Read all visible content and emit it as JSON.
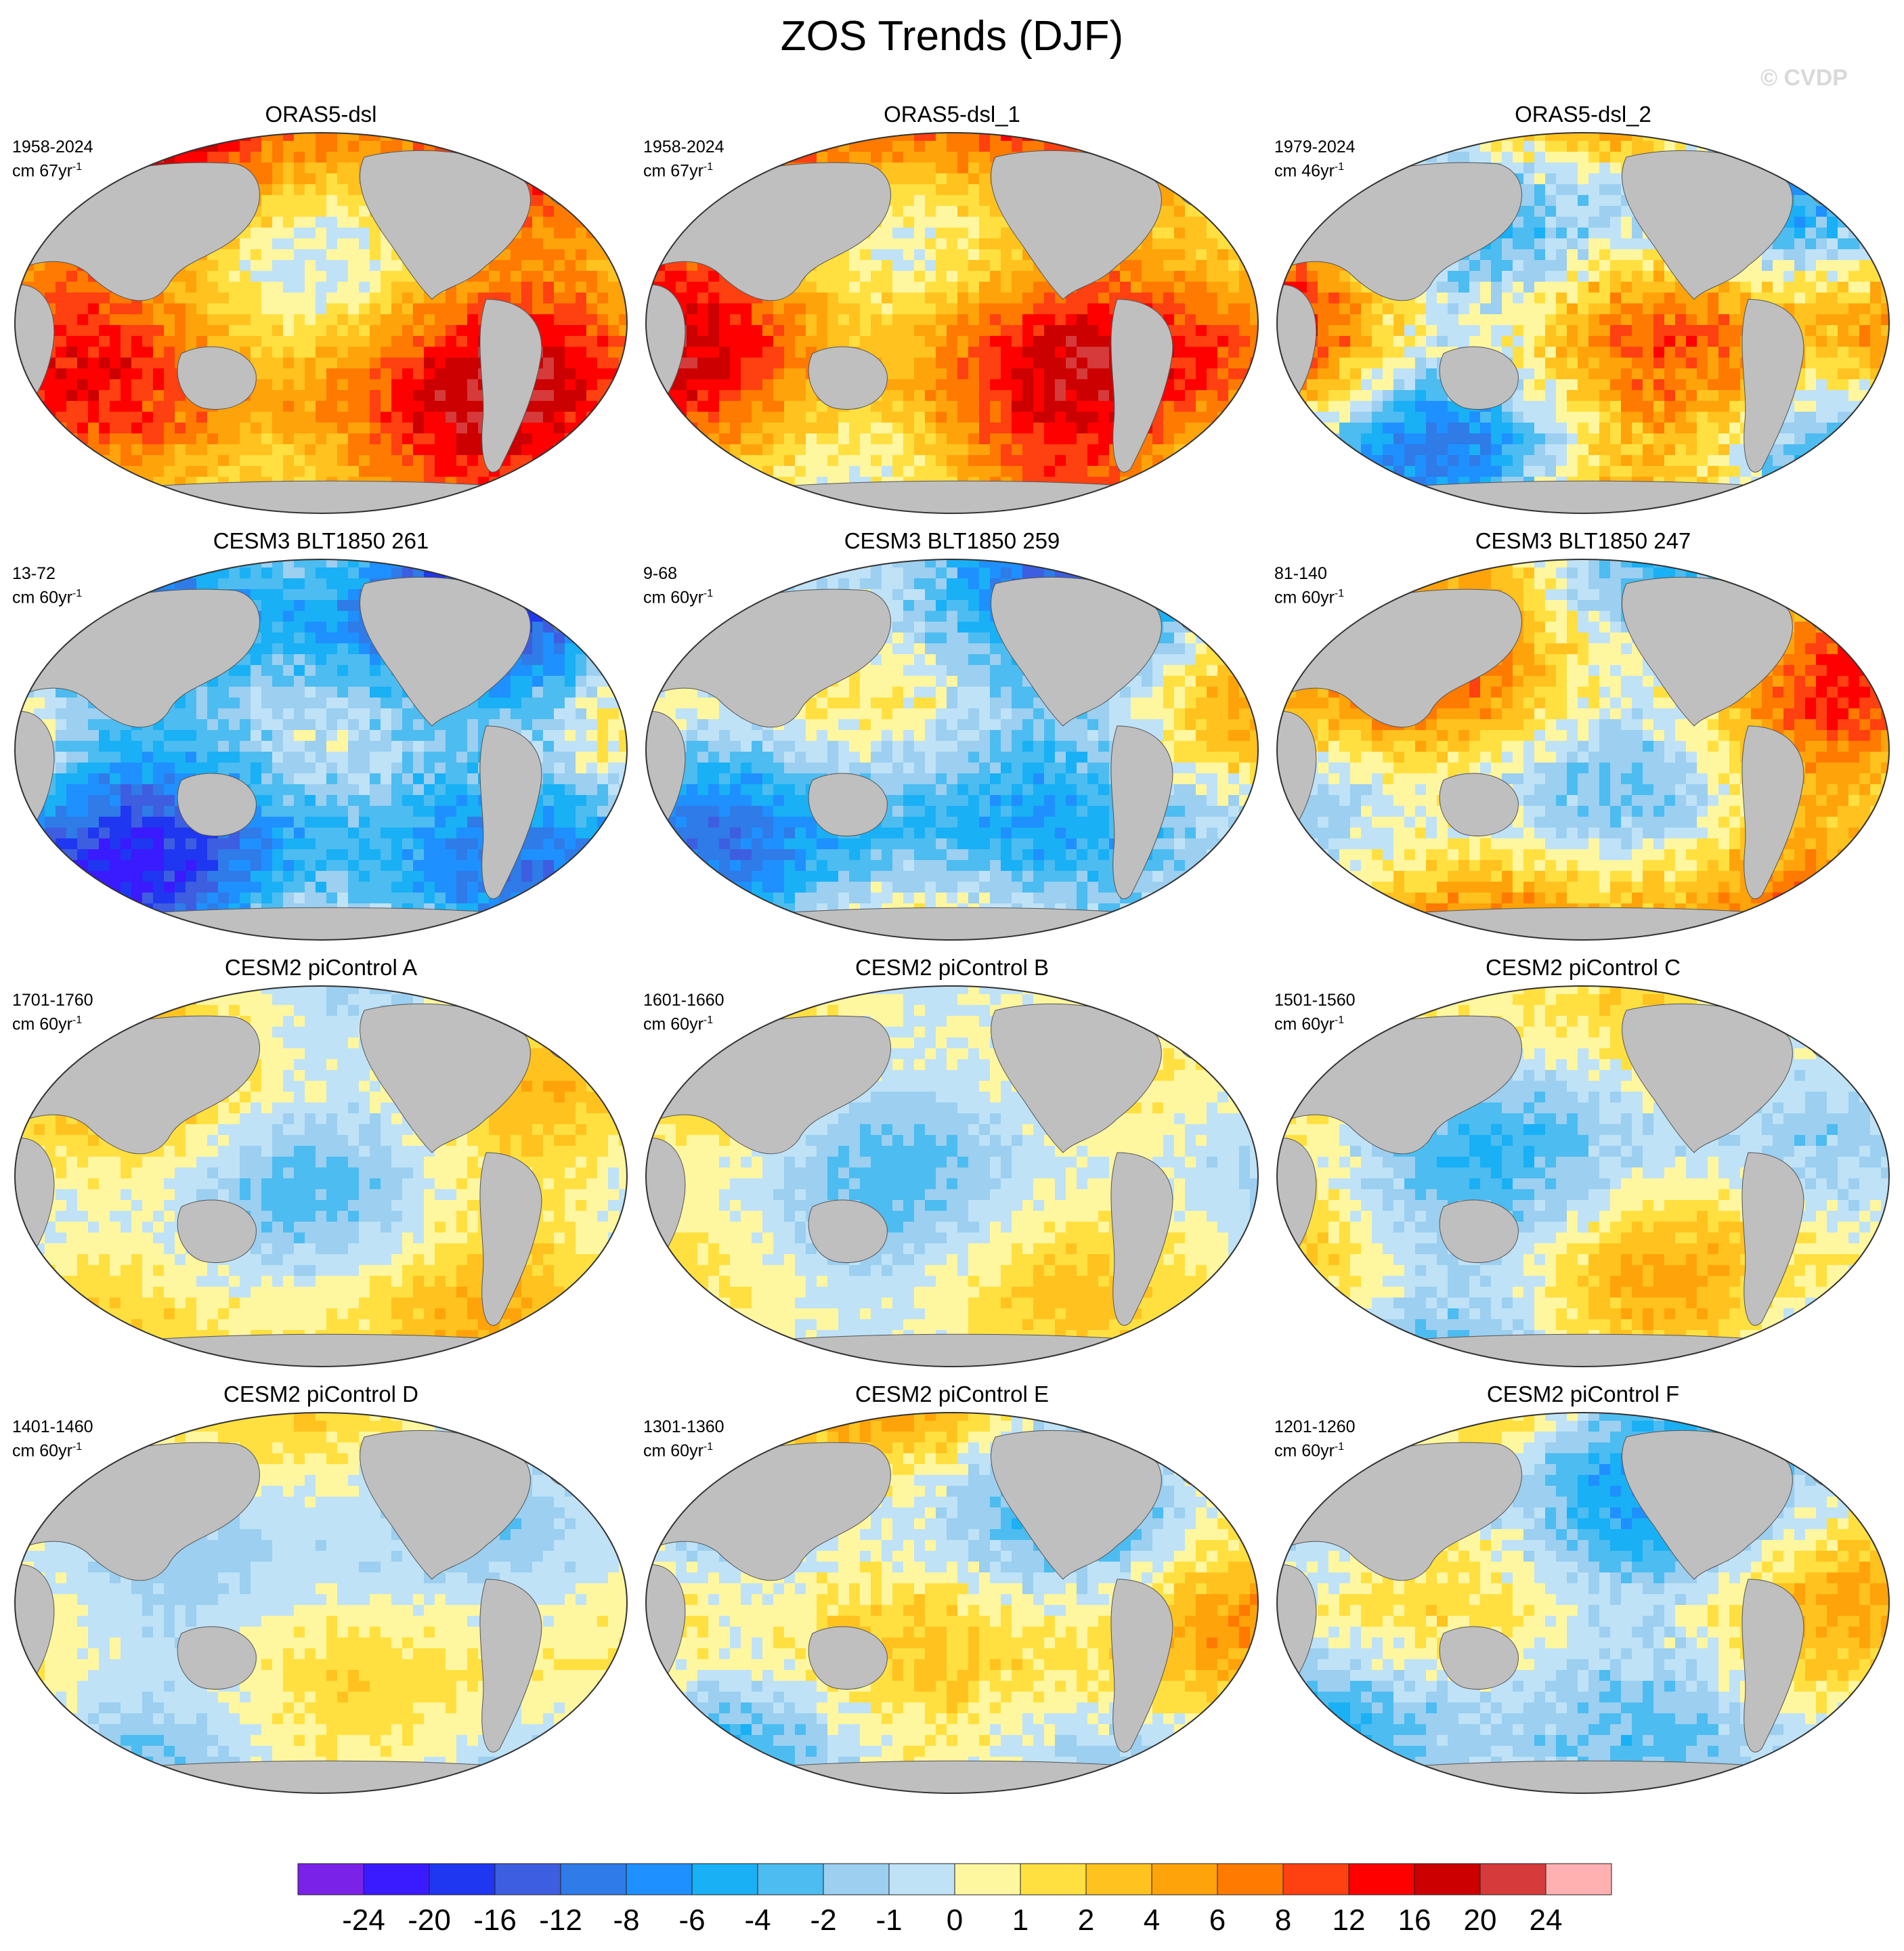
{
  "figure": {
    "title": "ZOS Trends (DJF)",
    "watermark": "© CVDP"
  },
  "chart_data": {
    "type": "heatmap",
    "title": "ZOS Trends (DJF)",
    "projection": "Robinson (global, Pacific-centered)",
    "land_color": "#bfbfbf",
    "panels": [
      {
        "title": "ORAS5-dsl",
        "years": "1958-2024",
        "units": "cm 67yr",
        "units_sup": "-1"
      },
      {
        "title": "ORAS5-dsl_1",
        "years": "1958-2024",
        "units": "cm 67yr",
        "units_sup": "-1"
      },
      {
        "title": "ORAS5-dsl_2",
        "years": "1979-2024",
        "units": "cm 46yr",
        "units_sup": "-1"
      },
      {
        "title": "CESM3 BLT1850 261",
        "years": "13-72",
        "units": "cm 60yr",
        "units_sup": "-1"
      },
      {
        "title": "CESM3 BLT1850 259",
        "years": "9-68",
        "units": "cm 60yr",
        "units_sup": "-1"
      },
      {
        "title": "CESM3 BLT1850 247",
        "years": "81-140",
        "units": "cm 60yr",
        "units_sup": "-1"
      },
      {
        "title": "CESM2 piControl A",
        "years": "1701-1760",
        "units": "cm 60yr",
        "units_sup": "-1"
      },
      {
        "title": "CESM2 piControl B",
        "years": "1601-1660",
        "units": "cm 60yr",
        "units_sup": "-1"
      },
      {
        "title": "CESM2 piControl C",
        "years": "1501-1560",
        "units": "cm 60yr",
        "units_sup": "-1"
      },
      {
        "title": "CESM2 piControl D",
        "years": "1401-1460",
        "units": "cm 60yr",
        "units_sup": "-1"
      },
      {
        "title": "CESM2 piControl E",
        "years": "1301-1360",
        "units": "cm 60yr",
        "units_sup": "-1"
      },
      {
        "title": "CESM2 piControl F",
        "years": "1201-1260",
        "units": "cm 60yr",
        "units_sup": "-1"
      }
    ],
    "colorbar": {
      "levels": [
        "-24",
        "-20",
        "-16",
        "-12",
        "-8",
        "-6",
        "-4",
        "-2",
        "-1",
        "0",
        "1",
        "2",
        "4",
        "6",
        "8",
        "12",
        "16",
        "20",
        "24"
      ],
      "colors": [
        "#7b22e8",
        "#3a1aff",
        "#1f37f0",
        "#3d5ee0",
        "#2f7be8",
        "#1e90ff",
        "#19b0f5",
        "#4dbcf0",
        "#9ccff0",
        "#bfe2f7",
        "#fff6a0",
        "#ffe040",
        "#ffc21f",
        "#ffa30a",
        "#ff7a00",
        "#ff4010",
        "#ff0000",
        "#cc0000",
        "#d63a3a",
        "#ffb0b0"
      ]
    }
  }
}
